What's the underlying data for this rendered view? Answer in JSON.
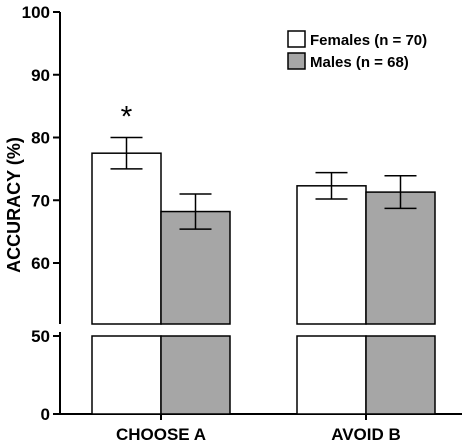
{
  "chart_data": {
    "type": "bar",
    "categories": [
      "CHOOSE A",
      "AVOID B"
    ],
    "series": [
      {
        "name": "Females (n = 70)",
        "values": [
          77.5,
          72.3
        ],
        "errors": [
          2.5,
          2.1
        ],
        "color": "#ffffff"
      },
      {
        "name": "Males (n = 68)",
        "values": [
          68.2,
          71.3
        ],
        "errors": [
          2.8,
          2.6
        ],
        "color": "#a6a6a6"
      }
    ],
    "ylabel": "ACCURACY (%)",
    "xlabel": "",
    "ylim": [
      0,
      100
    ],
    "axis_break": [
      50,
      60
    ],
    "yticks": [
      "0",
      "50",
      "60",
      "70",
      "80",
      "90",
      "100"
    ],
    "legend_position": "top-right",
    "annotations": [
      {
        "text": "*",
        "category": "CHOOSE A",
        "series": "Females (n = 70)"
      }
    ],
    "grid": false
  }
}
